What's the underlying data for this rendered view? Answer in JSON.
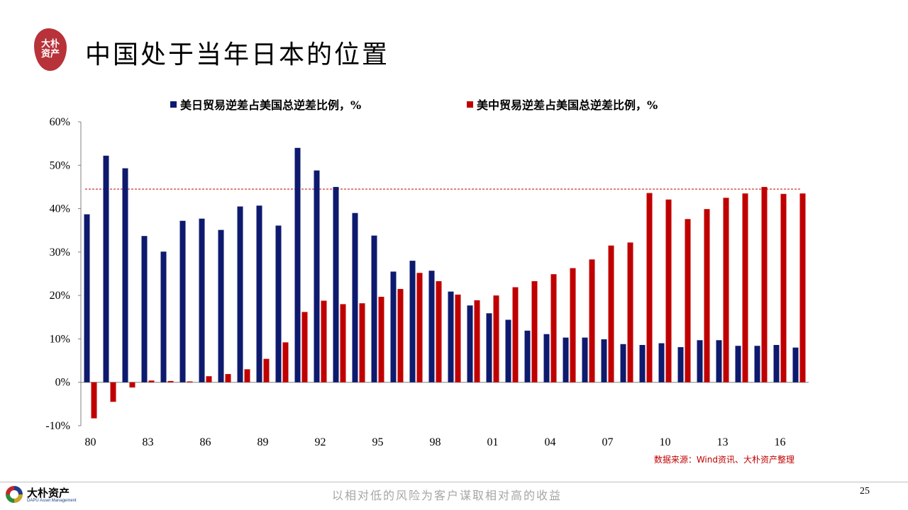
{
  "header": {
    "seal_text": "大朴资产",
    "title": "中国处于当年日本的位置"
  },
  "chart_data": {
    "type": "bar",
    "years": [
      "80",
      "81",
      "82",
      "83",
      "84",
      "85",
      "86",
      "87",
      "88",
      "89",
      "90",
      "91",
      "92",
      "93",
      "94",
      "95",
      "96",
      "97",
      "98",
      "99",
      "00",
      "01",
      "02",
      "03",
      "04",
      "05",
      "06",
      "07",
      "08",
      "09",
      "10",
      "11",
      "12",
      "13",
      "14",
      "15",
      "16",
      "17"
    ],
    "x_tick_labels": [
      "80",
      "83",
      "86",
      "89",
      "92",
      "95",
      "98",
      "01",
      "04",
      "07",
      "10",
      "13",
      "16"
    ],
    "y_tick_labels": [
      "60%",
      "50%",
      "40%",
      "30%",
      "20%",
      "10%",
      "0%",
      "-10%"
    ],
    "ylim": [
      -10,
      60
    ],
    "reference_line": 44.5,
    "series": [
      {
        "name": "美日贸易逆差占美国总逆差比例，%",
        "color": "#0d1a6e",
        "values": [
          38.7,
          52.2,
          49.3,
          33.7,
          30.1,
          37.2,
          37.7,
          35.1,
          40.5,
          40.7,
          36.1,
          54.0,
          48.8,
          45.0,
          39.0,
          33.8,
          25.5,
          28.0,
          25.7,
          20.9,
          17.7,
          15.9,
          14.4,
          11.9,
          11.1,
          10.3,
          10.3,
          9.9,
          8.8,
          8.6,
          9.0,
          8.1,
          9.7,
          9.7,
          8.4,
          8.4,
          8.6,
          8.0
        ]
      },
      {
        "name": "美中贸易逆差占美国总逆差比例，%",
        "color": "#c00000",
        "values": [
          -8.3,
          -4.5,
          -1.2,
          0.4,
          0.3,
          0.2,
          1.4,
          1.9,
          3.0,
          5.4,
          9.2,
          16.2,
          18.8,
          18.0,
          18.2,
          19.7,
          21.5,
          25.2,
          23.3,
          20.2,
          18.9,
          20.0,
          21.9,
          23.3,
          24.9,
          26.3,
          28.3,
          31.5,
          32.2,
          43.6,
          42.1,
          37.6,
          39.9,
          42.5,
          43.5,
          45.0,
          43.4,
          43.5
        ]
      }
    ]
  },
  "source": "数据来源：Wind资讯、大朴资产整理",
  "footer": {
    "logo_name": "大朴资产",
    "logo_sub": "DAPU Asset Management",
    "slogan": "以相对低的风险为客户谋取相对高的收益",
    "page_number": "25"
  }
}
